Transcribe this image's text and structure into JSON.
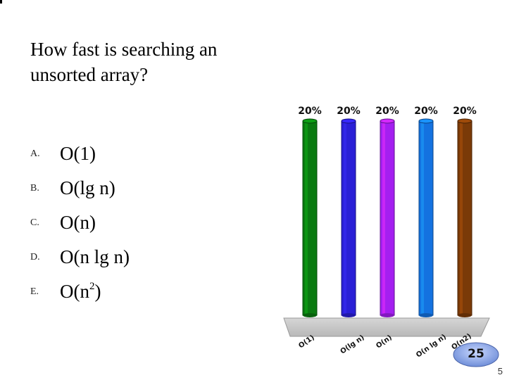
{
  "question": {
    "text": "How fast is searching an unsorted array?"
  },
  "options": [
    {
      "letter": "A.",
      "text": "O(1)"
    },
    {
      "letter": "B.",
      "text": "O(lg n)"
    },
    {
      "letter": "C.",
      "text": "O(n)"
    },
    {
      "letter": "D.",
      "text": "O(n lg n)"
    },
    {
      "letter": "E.",
      "text": "O(n",
      "sup": "2",
      "tail": ")"
    }
  ],
  "chart_data": {
    "type": "bar",
    "categories": [
      "O(1)",
      "O(lg n)",
      "O(n)",
      "O(n lg n)",
      "O(n2)"
    ],
    "values": [
      20,
      20,
      20,
      20,
      20
    ],
    "value_labels": [
      "20%",
      "20%",
      "20%",
      "20%",
      "20%"
    ],
    "colors": [
      "#0a7a10",
      "#2a1fd6",
      "#a41ff0",
      "#1472e0",
      "#7a3a08"
    ],
    "ylim": [
      0,
      20
    ]
  },
  "timer": {
    "value": "25"
  },
  "page": {
    "number": "5"
  }
}
